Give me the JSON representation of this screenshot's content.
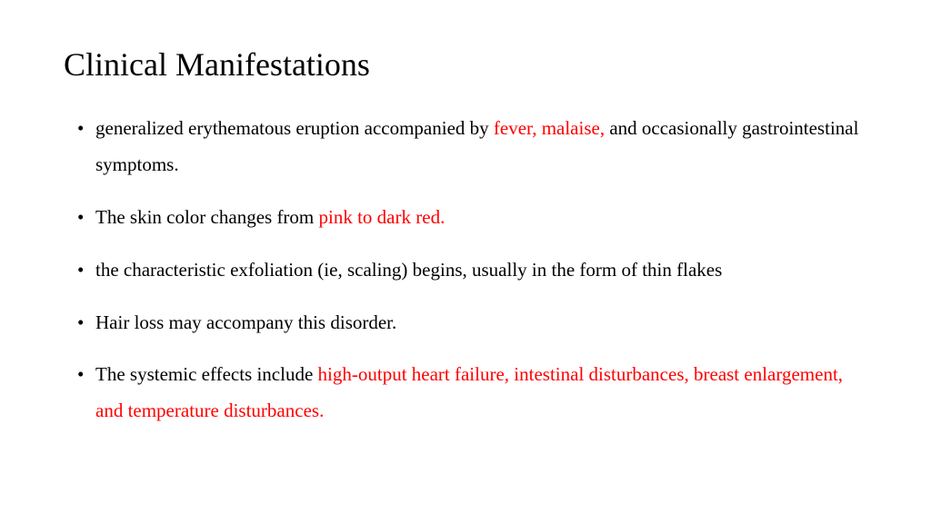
{
  "title": "Clinical Manifestations",
  "colors": {
    "text": "#000000",
    "highlight": "#ff0000",
    "background": "#ffffff"
  },
  "typography": {
    "title_fontsize": 36,
    "body_fontsize": 21,
    "font_family": "Times New Roman"
  },
  "bullets": [
    {
      "segments": [
        {
          "text": "generalized erythematous eruption accompanied by ",
          "highlight": false
        },
        {
          "text": "fever, malaise, ",
          "highlight": true
        },
        {
          "text": "and occasionally gastrointestinal symptoms.",
          "highlight": false
        }
      ]
    },
    {
      "segments": [
        {
          "text": "The skin color changes from ",
          "highlight": false
        },
        {
          "text": "pink to dark red.",
          "highlight": true
        }
      ]
    },
    {
      "segments": [
        {
          "text": "the characteristic exfoliation (ie, scaling) begins, usually in the form of thin flakes",
          "highlight": false
        }
      ]
    },
    {
      "segments": [
        {
          "text": "Hair loss may accompany this disorder.",
          "highlight": false
        }
      ]
    },
    {
      "segments": [
        {
          "text": "The systemic effects include ",
          "highlight": false
        },
        {
          "text": "high-output heart failure, intestinal disturbances, breast enlargement, and temperature disturbances.",
          "highlight": true
        }
      ]
    }
  ]
}
